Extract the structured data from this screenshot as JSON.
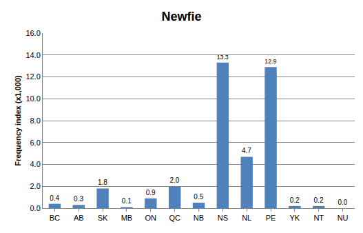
{
  "chart_data": {
    "type": "bar",
    "title": "Newfie",
    "y_label": "Frequency index (x1,000)",
    "categories": [
      "BC",
      "AB",
      "SK",
      "MB",
      "ON",
      "QC",
      "NB",
      "NS",
      "NL",
      "PE",
      "YK",
      "NT",
      "NU"
    ],
    "values": [
      0.4,
      0.3,
      1.8,
      0.1,
      0.9,
      2.0,
      0.5,
      13.3,
      4.7,
      12.9,
      0.2,
      0.2,
      0.0
    ],
    "value_labels": [
      "0.4",
      "0.3",
      "1.8",
      "0.1",
      "0.9",
      "2.0",
      "0.5",
      "13.3",
      "4.7",
      "12.9",
      "0.2",
      "0.2",
      "0.0"
    ],
    "color": "#4f81bd",
    "ylim": [
      0,
      16
    ],
    "yticks": [
      {
        "value": 0,
        "label": "0.0"
      },
      {
        "value": 2,
        "label": "2.0"
      },
      {
        "value": 4,
        "label": "4.0"
      },
      {
        "value": 6,
        "label": "6.0"
      },
      {
        "value": 8,
        "label": "8.0"
      },
      {
        "value": 10,
        "label": "10.0"
      },
      {
        "value": 12,
        "label": "12.0"
      },
      {
        "value": 14,
        "label": "14.0"
      },
      {
        "value": 16,
        "label": "16.0"
      }
    ],
    "grid": true,
    "data_labels": true
  }
}
